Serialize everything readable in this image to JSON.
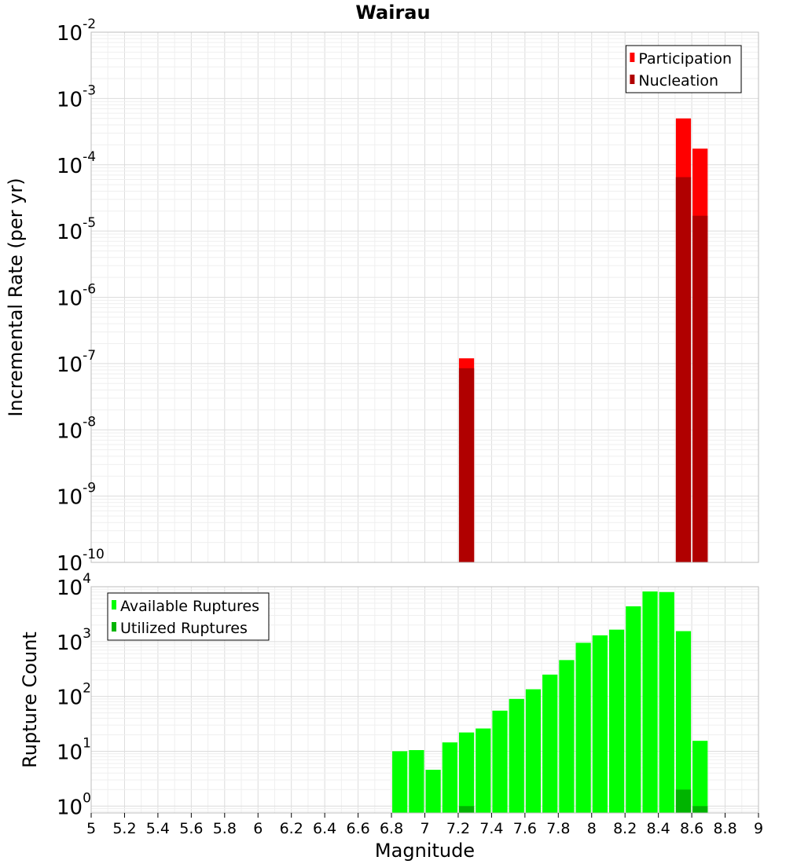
{
  "chart_data": [
    {
      "type": "bar",
      "title": "Wairau",
      "xlabel": "",
      "ylabel": "Incremental Rate (per yr)",
      "xlim": [
        5,
        9
      ],
      "ylim": [
        1e-10,
        0.01
      ],
      "yscale": "log",
      "grid": true,
      "legend": "top-right",
      "bin_width": 0.1,
      "series": [
        {
          "name": "Participation",
          "color": "#ff0000",
          "points": [
            {
              "x": 7.25,
              "y": 1.2e-07
            },
            {
              "x": 8.55,
              "y": 0.0005
            },
            {
              "x": 8.65,
              "y": 0.000175
            }
          ]
        },
        {
          "name": "Nucleation",
          "color": "#b00000",
          "points": [
            {
              "x": 7.25,
              "y": 8.5e-08
            },
            {
              "x": 8.55,
              "y": 6.5e-05
            },
            {
              "x": 8.65,
              "y": 1.7e-05
            }
          ]
        }
      ]
    },
    {
      "type": "bar",
      "title": "",
      "xlabel": "Magnitude",
      "ylabel": "Rupture Count",
      "xlim": [
        5,
        9
      ],
      "ylim": [
        0.75,
        10000
      ],
      "yscale": "log",
      "grid": true,
      "legend": "top-left",
      "bin_width": 0.1,
      "series": [
        {
          "name": "Available Ruptures",
          "color": "#00ff00",
          "points": [
            {
              "x": 6.85,
              "y": 10
            },
            {
              "x": 6.95,
              "y": 10.5
            },
            {
              "x": 7.05,
              "y": 4.6
            },
            {
              "x": 7.15,
              "y": 14.5
            },
            {
              "x": 7.25,
              "y": 22
            },
            {
              "x": 7.35,
              "y": 26
            },
            {
              "x": 7.45,
              "y": 55
            },
            {
              "x": 7.55,
              "y": 90
            },
            {
              "x": 7.65,
              "y": 135
            },
            {
              "x": 7.75,
              "y": 250
            },
            {
              "x": 7.85,
              "y": 460
            },
            {
              "x": 7.95,
              "y": 950
            },
            {
              "x": 8.05,
              "y": 1300
            },
            {
              "x": 8.15,
              "y": 1650
            },
            {
              "x": 8.25,
              "y": 4400
            },
            {
              "x": 8.35,
              "y": 8200
            },
            {
              "x": 8.45,
              "y": 8000
            },
            {
              "x": 8.55,
              "y": 1550
            },
            {
              "x": 8.65,
              "y": 15.5
            }
          ]
        },
        {
          "name": "Utilized Ruptures",
          "color": "#00b400",
          "points": [
            {
              "x": 7.25,
              "y": 1
            },
            {
              "x": 8.55,
              "y": 2
            },
            {
              "x": 8.65,
              "y": 1
            }
          ]
        }
      ]
    }
  ],
  "x_ticks": [
    "5",
    "5.2",
    "5.4",
    "5.6",
    "5.8",
    "6",
    "6.2",
    "6.4",
    "6.6",
    "6.8",
    "7",
    "7.2",
    "7.4",
    "7.6",
    "7.8",
    "8",
    "8.2",
    "8.4",
    "8.6",
    "8.8",
    "9"
  ],
  "top_y_ticks": [
    {
      "base": "10",
      "exp": "-2"
    },
    {
      "base": "10",
      "exp": "-3"
    },
    {
      "base": "10",
      "exp": "-4"
    },
    {
      "base": "10",
      "exp": "-5"
    },
    {
      "base": "10",
      "exp": "-6"
    },
    {
      "base": "10",
      "exp": "-7"
    },
    {
      "base": "10",
      "exp": "-8"
    },
    {
      "base": "10",
      "exp": "-9"
    },
    {
      "base": "10",
      "exp": "-10"
    }
  ],
  "bottom_y_ticks": [
    {
      "base": "10",
      "exp": "4"
    },
    {
      "base": "10",
      "exp": "3"
    },
    {
      "base": "10",
      "exp": "2"
    },
    {
      "base": "10",
      "exp": "1"
    },
    {
      "base": "10",
      "exp": "0"
    }
  ]
}
